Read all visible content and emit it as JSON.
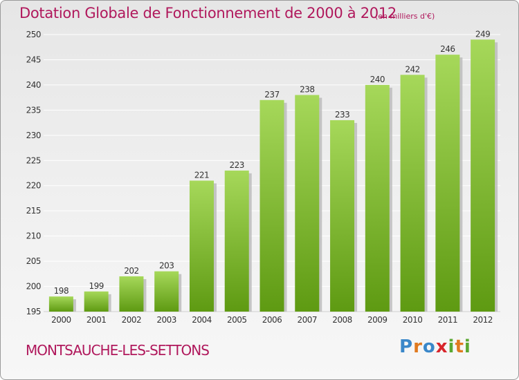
{
  "header": {
    "title": "Dotation Globale de Fonctionnement de 2000 à 2012",
    "unit_note": "(en milliers d'€)"
  },
  "footer": {
    "commune": "MONTSAUCHE-LES-SETTONS",
    "brand": "Proxiti"
  },
  "colors": {
    "title": "#b0185c",
    "bar_top": "#a6d85a",
    "bar_bottom": "#5e9a12",
    "shadow": "#b9b9b9",
    "grid": "#ffffff"
  },
  "chart_data": {
    "type": "bar",
    "title": "Dotation Globale de Fonctionnement de 2000 à 2012",
    "subtitle": "(en milliers d'€)",
    "xlabel": "",
    "ylabel": "",
    "categories": [
      "2000",
      "2001",
      "2002",
      "2003",
      "2004",
      "2005",
      "2006",
      "2007",
      "2008",
      "2009",
      "2010",
      "2011",
      "2012"
    ],
    "values": [
      198,
      199,
      202,
      203,
      221,
      223,
      237,
      238,
      233,
      240,
      242,
      246,
      249
    ],
    "ylim": [
      195,
      250
    ],
    "yticks": [
      195,
      200,
      205,
      210,
      215,
      220,
      225,
      230,
      235,
      240,
      245,
      250
    ],
    "grid": true,
    "legend": "none"
  }
}
